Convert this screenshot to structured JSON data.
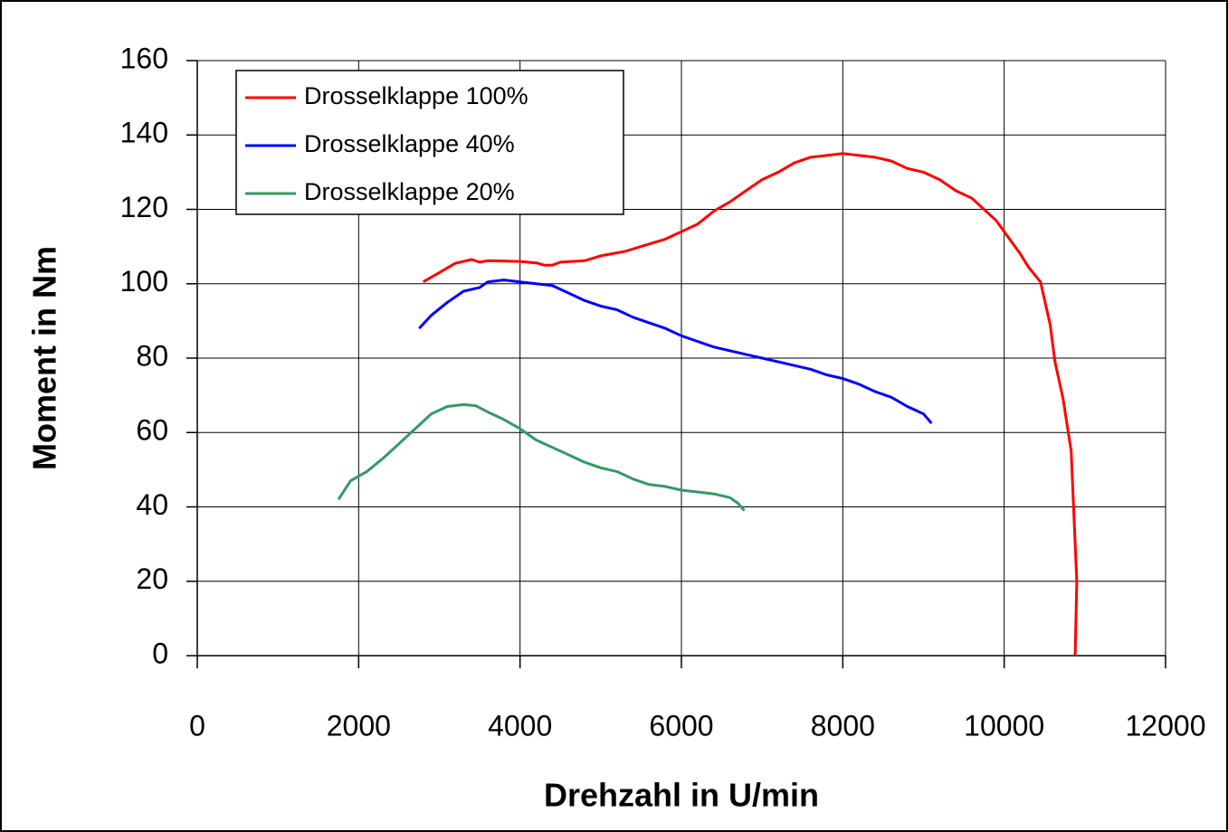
{
  "chart_data": {
    "type": "line",
    "xlabel": "Drehzahl in U/min",
    "ylabel": "Moment in Nm",
    "xlim": [
      0,
      12000
    ],
    "xticks": [
      0,
      2000,
      4000,
      6000,
      8000,
      10000,
      12000
    ],
    "ylim": [
      0,
      160
    ],
    "yticks": [
      0,
      20,
      40,
      60,
      80,
      100,
      120,
      140,
      160
    ],
    "grid": true,
    "legend": "upper left",
    "series": [
      {
        "name": "Drosselklappe 100%",
        "color": "#ff0000",
        "x": [
          2800,
          3000,
          3200,
          3400,
          3500,
          3600,
          4000,
          4200,
          4300,
          4400,
          4500,
          4800,
          5000,
          5300,
          5500,
          5800,
          6000,
          6200,
          6400,
          6600,
          6800,
          7000,
          7200,
          7400,
          7600,
          7800,
          8000,
          8200,
          8400,
          8600,
          8800,
          9000,
          9200,
          9400,
          9600,
          9800,
          9900,
          10000,
          10200,
          10300,
          10450,
          10570,
          10630,
          10730,
          10830,
          10900,
          10880
        ],
        "values": [
          100.5,
          103,
          105.5,
          106.5,
          105.8,
          106.2,
          106,
          105.6,
          105,
          105,
          105.8,
          106.2,
          107.5,
          108.7,
          110,
          112,
          114,
          116,
          119.5,
          122,
          125,
          128,
          130,
          132.5,
          134,
          134.5,
          135,
          134.5,
          134,
          133,
          131,
          130,
          128,
          125,
          123,
          119,
          117,
          114,
          108,
          104.5,
          100.5,
          89,
          79,
          69,
          55,
          20,
          0
        ]
      },
      {
        "name": "Drosselklappe 40%",
        "color": "#0000ff",
        "x": [
          2750,
          2900,
          3100,
          3300,
          3500,
          3600,
          3800,
          4000,
          4200,
          4400,
          4600,
          4800,
          5000,
          5200,
          5400,
          5600,
          5800,
          6000,
          6200,
          6400,
          6600,
          6800,
          7000,
          7200,
          7400,
          7600,
          7800,
          8000,
          8200,
          8400,
          8600,
          8800,
          9000,
          9100
        ],
        "values": [
          88,
          91.5,
          95,
          98,
          99,
          100.5,
          101,
          100.5,
          100,
          99.5,
          97.5,
          95.5,
          94,
          93,
          91,
          89.5,
          88,
          86,
          84.5,
          83,
          82,
          81,
          80,
          79,
          78,
          77,
          75.5,
          74.5,
          73,
          71,
          69.5,
          67,
          65,
          62.5
        ]
      },
      {
        "name": "Drosselklappe 20%",
        "color": "#339966",
        "x": [
          1750,
          1900,
          2100,
          2300,
          2500,
          2700,
          2900,
          3100,
          3300,
          3450,
          3600,
          3800,
          4000,
          4200,
          4400,
          4600,
          4800,
          5000,
          5200,
          5400,
          5600,
          5800,
          6000,
          6200,
          6400,
          6600,
          6700,
          6780
        ],
        "values": [
          42,
          47,
          49.5,
          53,
          57,
          61,
          65,
          67,
          67.5,
          67.2,
          65.5,
          63.5,
          61,
          58,
          56,
          54,
          52,
          50.5,
          49.5,
          47.5,
          46,
          45.5,
          44.5,
          44,
          43.5,
          42.5,
          41,
          39
        ]
      }
    ]
  }
}
